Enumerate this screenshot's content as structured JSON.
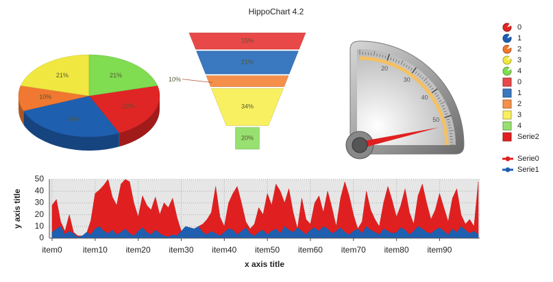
{
  "title": "HippoChart 4.2",
  "chart_data": [
    {
      "type": "pie",
      "categories": [
        "0",
        "1",
        "2",
        "3",
        "4"
      ],
      "values": [
        22,
        26,
        10,
        21,
        21
      ],
      "value_labels": [
        "22%",
        "26%",
        "10%",
        "21%",
        "21%"
      ],
      "colors": [
        "#e02525",
        "#1f5fb0",
        "#f07830",
        "#f0e840",
        "#80dc50"
      ]
    },
    {
      "type": "funnel",
      "categories": [
        "0",
        "1",
        "2",
        "3",
        "4"
      ],
      "values": [
        15,
        21,
        10,
        34,
        20
      ],
      "value_labels": [
        "15%",
        "21%",
        "10%",
        "34%",
        "20%"
      ],
      "colors": [
        "#e84848",
        "#3a78c0",
        "#f5904a",
        "#f8f060",
        "#98e070"
      ]
    },
    {
      "type": "gauge",
      "series": [
        {
          "name": "Serie2",
          "color": "#e02020",
          "values": [
            53
          ]
        }
      ],
      "ylim": [
        10,
        60
      ],
      "yticks": [
        20,
        30,
        40,
        50
      ]
    },
    {
      "type": "area",
      "xlabel": "x axis title",
      "ylabel": "y axis title",
      "grid": true,
      "categories": [
        "item0",
        null,
        null,
        null,
        null,
        null,
        null,
        null,
        null,
        null,
        "item10",
        null,
        null,
        null,
        null,
        null,
        null,
        null,
        null,
        null,
        "item20",
        null,
        null,
        null,
        null,
        null,
        null,
        null,
        null,
        null,
        "item30",
        null,
        null,
        null,
        null,
        null,
        null,
        null,
        null,
        null,
        "item40",
        null,
        null,
        null,
        null,
        null,
        null,
        null,
        null,
        null,
        "item50",
        null,
        null,
        null,
        null,
        null,
        null,
        null,
        null,
        null,
        "item60",
        null,
        null,
        null,
        null,
        null,
        null,
        null,
        null,
        null,
        "item70",
        null,
        null,
        null,
        null,
        null,
        null,
        null,
        null,
        null,
        "item80",
        null,
        null,
        null,
        null,
        null,
        null,
        null,
        null,
        null,
        "item90",
        null,
        null,
        null,
        null,
        null,
        null,
        null,
        null,
        null
      ],
      "series": [
        {
          "name": "Serie0",
          "color": "#e02020",
          "values": [
            28,
            33,
            14,
            6,
            20,
            5,
            2,
            2,
            4,
            15,
            38,
            41,
            45,
            50,
            35,
            28,
            46,
            50,
            48,
            30,
            18,
            36,
            28,
            24,
            35,
            20,
            30,
            26,
            34,
            18,
            6,
            4,
            2,
            5,
            10,
            12,
            16,
            22,
            44,
            18,
            10,
            30,
            38,
            44,
            30,
            14,
            8,
            12,
            26,
            20,
            38,
            28,
            46,
            40,
            30,
            42,
            22,
            8,
            34,
            16,
            12,
            30,
            36,
            22,
            40,
            26,
            10,
            34,
            48,
            36,
            20,
            8,
            14,
            40,
            24,
            16,
            10,
            30,
            44,
            32,
            18,
            28,
            42,
            22,
            12,
            36,
            46,
            30,
            16,
            24,
            38,
            26,
            14,
            34,
            42,
            20,
            12,
            16,
            10,
            48
          ]
        },
        {
          "name": "Serie1",
          "color": "#1f5fb0",
          "values": [
            5,
            8,
            10,
            3,
            6,
            4,
            1,
            2,
            5,
            3,
            8,
            10,
            6,
            4,
            7,
            3,
            5,
            8,
            4,
            2,
            6,
            9,
            5,
            3,
            7,
            4,
            2,
            1,
            3,
            2,
            6,
            10,
            9,
            8,
            10,
            5,
            3,
            6,
            4,
            2,
            5,
            8,
            7,
            3,
            6,
            9,
            4,
            2,
            5,
            7,
            3,
            6,
            8,
            4,
            10,
            7,
            5,
            9,
            6,
            3,
            7,
            9,
            6,
            10,
            8,
            4,
            6,
            9,
            5,
            3,
            6,
            8,
            4,
            10,
            7,
            5,
            3,
            8,
            6,
            4,
            5,
            9,
            7,
            3,
            6,
            10,
            8,
            5,
            4,
            7,
            9,
            6,
            3,
            8,
            5,
            10,
            7,
            4,
            6,
            3
          ]
        }
      ],
      "ylim": [
        0,
        50
      ],
      "yticks": [
        0,
        10,
        20,
        30,
        40,
        50
      ]
    }
  ]
}
